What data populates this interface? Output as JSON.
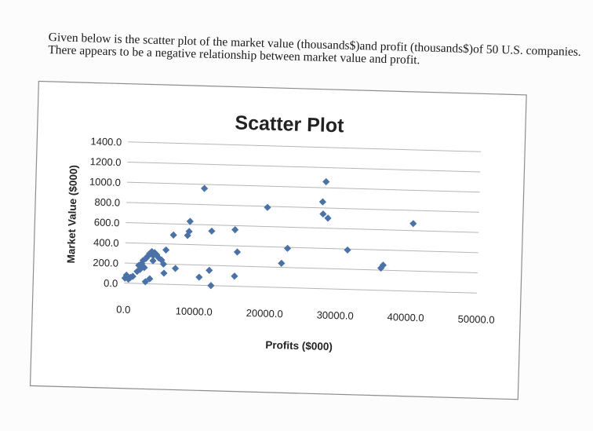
{
  "intro_text": "Given below is the scatter plot of the market value (thousands$)and profit (thousands$)of 50 U.S. companies. There appears to be a negative relationship between market value and profit.",
  "chart_data": {
    "type": "scatter",
    "title": "Scatter Plot",
    "xlabel": "Profits ($000)",
    "ylabel": "Market Value ($000)",
    "xlim": [
      0,
      50000
    ],
    "ylim": [
      0,
      1400
    ],
    "x_ticks": [
      "0.0",
      "10000.0",
      "20000.0",
      "30000.0",
      "40000.0",
      "50000.0"
    ],
    "y_ticks": [
      "0.0",
      "200.0",
      "400.0",
      "600.0",
      "800.0",
      "1000.0",
      "1200.0",
      "1400.0"
    ],
    "grid": true,
    "marker_color": "#4a72a6",
    "points": [
      [
        100,
        50
      ],
      [
        300,
        80
      ],
      [
        600,
        40
      ],
      [
        900,
        60
      ],
      [
        1200,
        70
      ],
      [
        1800,
        120
      ],
      [
        2000,
        180
      ],
      [
        2200,
        140
      ],
      [
        2400,
        200
      ],
      [
        2600,
        230
      ],
      [
        2800,
        160
      ],
      [
        3000,
        250
      ],
      [
        3200,
        270
      ],
      [
        3500,
        300
      ],
      [
        3800,
        320
      ],
      [
        4000,
        280
      ],
      [
        4200,
        310
      ],
      [
        4500,
        290
      ],
      [
        4800,
        260
      ],
      [
        5200,
        240
      ],
      [
        5500,
        200
      ],
      [
        5800,
        340
      ],
      [
        3000,
        20
      ],
      [
        3600,
        50
      ],
      [
        5600,
        110
      ],
      [
        6800,
        490
      ],
      [
        7200,
        160
      ],
      [
        8800,
        490
      ],
      [
        9000,
        530
      ],
      [
        9100,
        630
      ],
      [
        10600,
        80
      ],
      [
        11000,
        960
      ],
      [
        12000,
        150
      ],
      [
        12200,
        540
      ],
      [
        12300,
        0
      ],
      [
        15500,
        560
      ],
      [
        15600,
        100
      ],
      [
        15900,
        340
      ],
      [
        20000,
        790
      ],
      [
        22200,
        240
      ],
      [
        23000,
        390
      ],
      [
        27800,
        860
      ],
      [
        27900,
        740
      ],
      [
        28200,
        1060
      ],
      [
        28600,
        700
      ],
      [
        31500,
        390
      ],
      [
        36300,
        220
      ],
      [
        36600,
        250
      ],
      [
        40700,
        670
      ],
      [
        4000,
        230
      ]
    ]
  }
}
